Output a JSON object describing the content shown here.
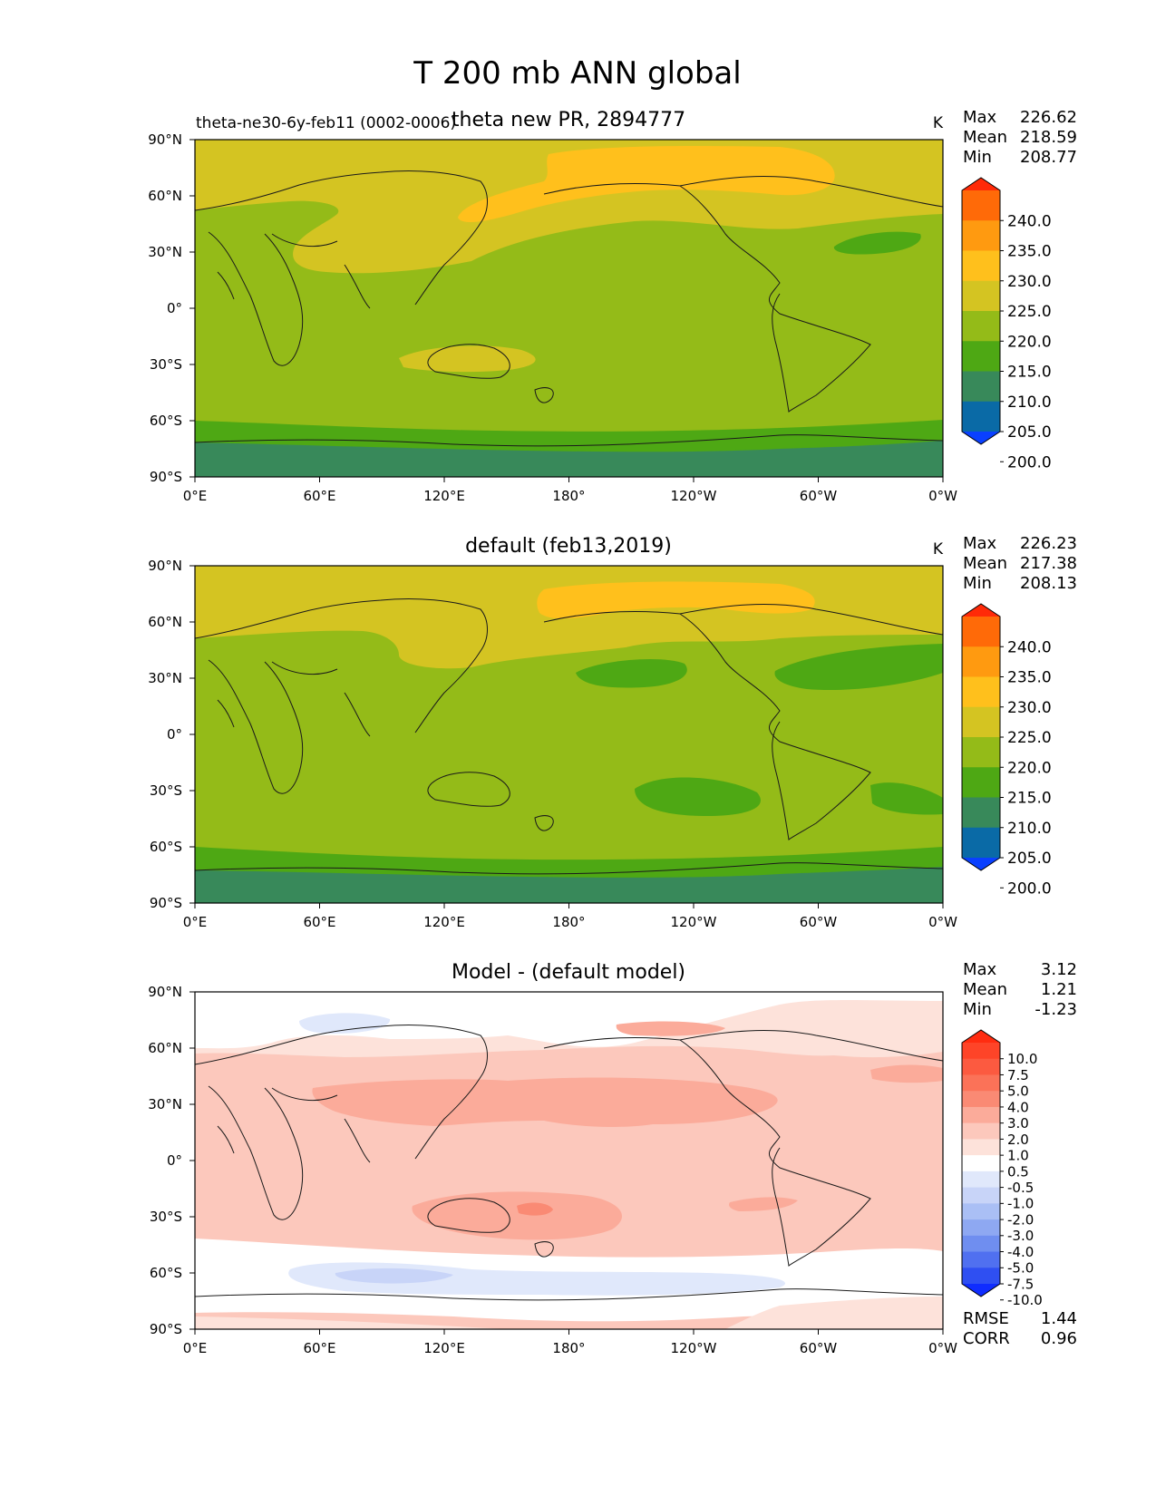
{
  "figure": {
    "title": "T 200 mb ANN global"
  },
  "axes": {
    "lat_ticks": [
      "90°N",
      "60°N",
      "30°N",
      "0°",
      "30°S",
      "60°S",
      "90°S"
    ],
    "lon_ticks": [
      "0°E",
      "60°E",
      "120°E",
      "180°",
      "120°W",
      "60°W",
      "0°W"
    ]
  },
  "panels": [
    {
      "key": "test",
      "title": "theta new PR, 2894777",
      "left_label": "theta-ne30-6y-feb11 (0002-0006)",
      "units": "K",
      "stats": [
        {
          "label": "Max",
          "value": "226.62"
        },
        {
          "label": "Mean",
          "value": "218.59"
        },
        {
          "label": "Min",
          "value": "208.77"
        }
      ],
      "colorbar": {
        "labels": [
          "240.0",
          "235.0",
          "230.0",
          "225.0",
          "220.0",
          "215.0",
          "210.0",
          "205.0",
          "200.0"
        ],
        "colors": [
          "#ff2a08",
          "#ff6a08",
          "#ff9a10",
          "#ffc01c",
          "#d4c422",
          "#94bb18",
          "#4ea814",
          "#38895a",
          "#0a6aa6",
          "#0a40ff"
        ]
      }
    },
    {
      "key": "ref",
      "title": "default (feb13,2019)",
      "units": "K",
      "stats": [
        {
          "label": "Max",
          "value": "226.23"
        },
        {
          "label": "Mean",
          "value": "217.38"
        },
        {
          "label": "Min",
          "value": "208.13"
        }
      ],
      "colorbar": {
        "labels": [
          "240.0",
          "235.0",
          "230.0",
          "225.0",
          "220.0",
          "215.0",
          "210.0",
          "205.0",
          "200.0"
        ],
        "colors": [
          "#ff2a08",
          "#ff6a08",
          "#ff9a10",
          "#ffc01c",
          "#d4c422",
          "#94bb18",
          "#4ea814",
          "#38895a",
          "#0a6aa6",
          "#0a40ff"
        ]
      }
    },
    {
      "key": "diff",
      "title": "Model - (default model)",
      "stats": [
        {
          "label": "Max",
          "value": "3.12"
        },
        {
          "label": "Mean",
          "value": "1.21"
        },
        {
          "label": "Min",
          "value": "-1.23"
        }
      ],
      "metrics": [
        {
          "label": "RMSE",
          "value": "1.44"
        },
        {
          "label": "CORR",
          "value": "0.96"
        }
      ],
      "colorbar": {
        "labels": [
          "10.0",
          "7.5",
          "5.0",
          "4.0",
          "3.0",
          "2.0",
          "1.0",
          "0.5",
          "-0.5",
          "-1.0",
          "-2.0",
          "-3.0",
          "-4.0",
          "-5.0",
          "-7.5",
          "-10.0"
        ],
        "colors": [
          "#ff2c10",
          "#fe4428",
          "#fc5a40",
          "#fb7258",
          "#fa8a74",
          "#fbab9a",
          "#fcc8bc",
          "#fde2da",
          "#ffffff",
          "#e0e8fb",
          "#c8d4f8",
          "#aabff5",
          "#8ea8f2",
          "#6f8ef0",
          "#5070f0",
          "#2f4ff2",
          "#0f2cff"
        ]
      }
    }
  ]
}
